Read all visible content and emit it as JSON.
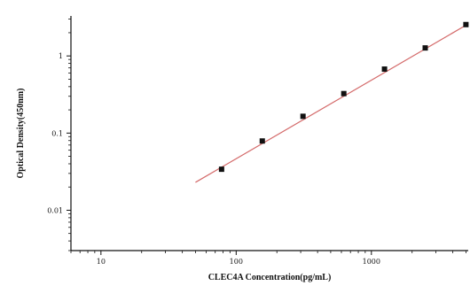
{
  "chart_data": {
    "type": "scatter",
    "title": "",
    "xlabel": "CLEC4A Concentration(pg/mL)",
    "ylabel": "Optical Density(450nm)",
    "xscale": "log",
    "yscale": "log",
    "xlim": [
      6,
      5200
    ],
    "ylim": [
      0.003,
      3.3
    ],
    "xticks": [
      10,
      100,
      1000
    ],
    "xtick_labels": [
      "10",
      "100",
      "1000"
    ],
    "yticks": [
      0.01,
      0.1,
      1
    ],
    "ytick_labels": [
      "0.01",
      "0.1",
      "1"
    ],
    "grid": false,
    "legend": "none",
    "series": [
      {
        "values_x": [
          78,
          156,
          312,
          625,
          1250,
          2500,
          5000
        ],
        "values_y": [
          0.034,
          0.079,
          0.165,
          0.325,
          0.675,
          1.27,
          2.55
        ]
      }
    ],
    "fit_line": {
      "x": [
        50,
        5000
      ],
      "y": [
        0.023,
        2.5
      ],
      "color": "#d46a6a"
    }
  }
}
